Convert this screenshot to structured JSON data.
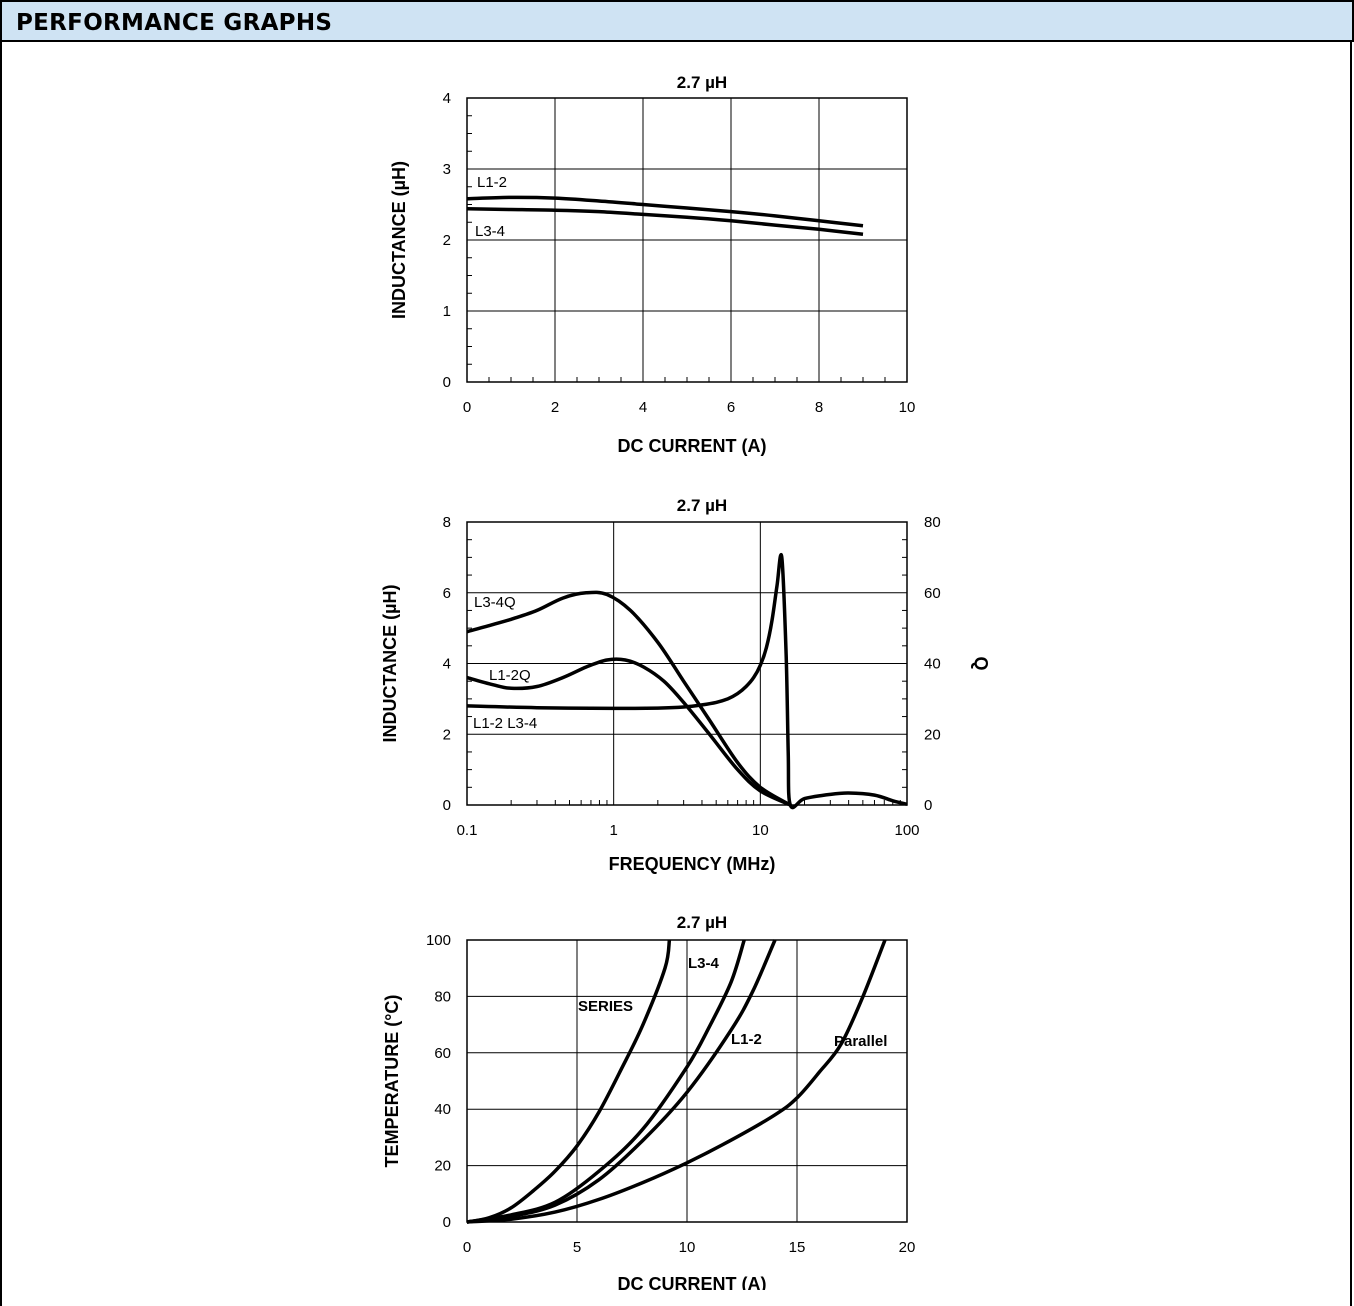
{
  "header": {
    "title": "PERFORMANCE GRAPHS"
  },
  "chart_data": [
    {
      "type": "line",
      "title": "2.7 µH",
      "xlabel": "DC CURRENT (A)",
      "ylabel": "INDUCTANCE (µH)",
      "xlim": [
        0,
        10
      ],
      "ylim": [
        0,
        4
      ],
      "x_ticks": [
        "0",
        "2",
        "4",
        "6",
        "8",
        "10"
      ],
      "y_ticks": [
        "0",
        "1",
        "2",
        "3",
        "4"
      ],
      "grid": true,
      "series": [
        {
          "name": "L1-2",
          "x": [
            0,
            1,
            2,
            3,
            4,
            5,
            6,
            7,
            8,
            9
          ],
          "y": [
            2.58,
            2.6,
            2.59,
            2.55,
            2.5,
            2.45,
            2.4,
            2.34,
            2.27,
            2.2
          ]
        },
        {
          "name": "L3-4",
          "x": [
            0,
            1,
            2,
            3,
            4,
            5,
            6,
            7,
            8,
            9
          ],
          "y": [
            2.44,
            2.43,
            2.42,
            2.4,
            2.36,
            2.32,
            2.27,
            2.21,
            2.15,
            2.08
          ]
        }
      ]
    },
    {
      "type": "line",
      "title": "2.7 µH",
      "xlabel": "FREQUENCY (MHz)",
      "ylabel": "INDUCTANCE (µH)",
      "y2label": "Q",
      "xscale": "log",
      "xlim": [
        0.1,
        100
      ],
      "ylim": [
        0,
        8
      ],
      "y2lim": [
        0,
        80
      ],
      "x_ticks": [
        "0.1",
        "1",
        "10",
        "100"
      ],
      "y_ticks": [
        "0",
        "2",
        "4",
        "6",
        "8"
      ],
      "y2_ticks": [
        "0",
        "20",
        "40",
        "60",
        "80"
      ],
      "grid": true,
      "series": [
        {
          "name": "L3-4Q",
          "axis": "right",
          "x": [
            0.1,
            0.15,
            0.2,
            0.3,
            0.45,
            0.65,
            0.9,
            1.3,
            2,
            3,
            4.5,
            7,
            10,
            16
          ],
          "y": [
            49,
            51,
            52.5,
            55,
            58.5,
            60,
            59.5,
            55,
            46,
            35,
            24,
            12,
            5,
            0
          ]
        },
        {
          "name": "L1-2Q",
          "axis": "right",
          "x": [
            0.1,
            0.15,
            0.2,
            0.3,
            0.45,
            0.65,
            0.9,
            1.2,
            1.6,
            2.2,
            3,
            4.5,
            7,
            10,
            16
          ],
          "y": [
            36,
            34,
            33,
            33.5,
            36,
            39,
            41,
            41,
            39,
            35,
            29,
            20,
            10,
            4,
            0
          ]
        },
        {
          "name": "L1-2  L3-4",
          "axis": "left",
          "x": [
            0.1,
            0.3,
            1,
            2,
            3,
            4,
            5,
            6,
            7,
            8,
            9,
            10,
            11,
            12,
            13,
            14,
            15,
            15.5,
            16,
            20,
            30,
            40,
            60,
            80,
            100
          ],
          "y": [
            2.8,
            2.75,
            2.73,
            2.74,
            2.77,
            2.83,
            2.9,
            3.0,
            3.15,
            3.35,
            3.6,
            3.95,
            4.45,
            5.2,
            6.2,
            7.0,
            4.2,
            1.5,
            0.0,
            0.18,
            0.3,
            0.34,
            0.28,
            0.12,
            0.02
          ]
        }
      ]
    },
    {
      "type": "line",
      "title": "2.7 µH",
      "xlabel": "DC CURRENT (A)",
      "ylabel": "TEMPERATURE (°C)",
      "xlim": [
        0,
        20
      ],
      "ylim": [
        0,
        100
      ],
      "x_ticks": [
        "0",
        "5",
        "10",
        "15",
        "20"
      ],
      "y_ticks": [
        "0",
        "20",
        "40",
        "60",
        "80",
        "100"
      ],
      "grid": true,
      "series": [
        {
          "name": "SERIES",
          "x": [
            0,
            1,
            2,
            3,
            4,
            5,
            6,
            7,
            8,
            9,
            9.2
          ],
          "y": [
            0,
            1.5,
            5,
            11,
            18,
            27,
            39,
            54,
            70,
            90,
            100
          ]
        },
        {
          "name": "L3-4",
          "x": [
            0,
            2,
            4,
            6,
            8,
            10,
            11,
            12,
            12.6
          ],
          "y": [
            0,
            2.5,
            7,
            18,
            33,
            55,
            69,
            85,
            100
          ]
        },
        {
          "name": "L1-2",
          "x": [
            0,
            2,
            4,
            6,
            8,
            10,
            12,
            13,
            14
          ],
          "y": [
            0,
            2,
            6,
            15,
            29,
            46,
            68,
            82,
            100
          ]
        },
        {
          "name": "Parallel",
          "x": [
            0,
            2,
            4,
            6,
            8,
            10,
            12,
            14,
            15,
            16,
            17,
            18,
            19
          ],
          "y": [
            0,
            1,
            3.5,
            8,
            14,
            21,
            29,
            38,
            44,
            53,
            63,
            80,
            100
          ]
        }
      ]
    }
  ]
}
